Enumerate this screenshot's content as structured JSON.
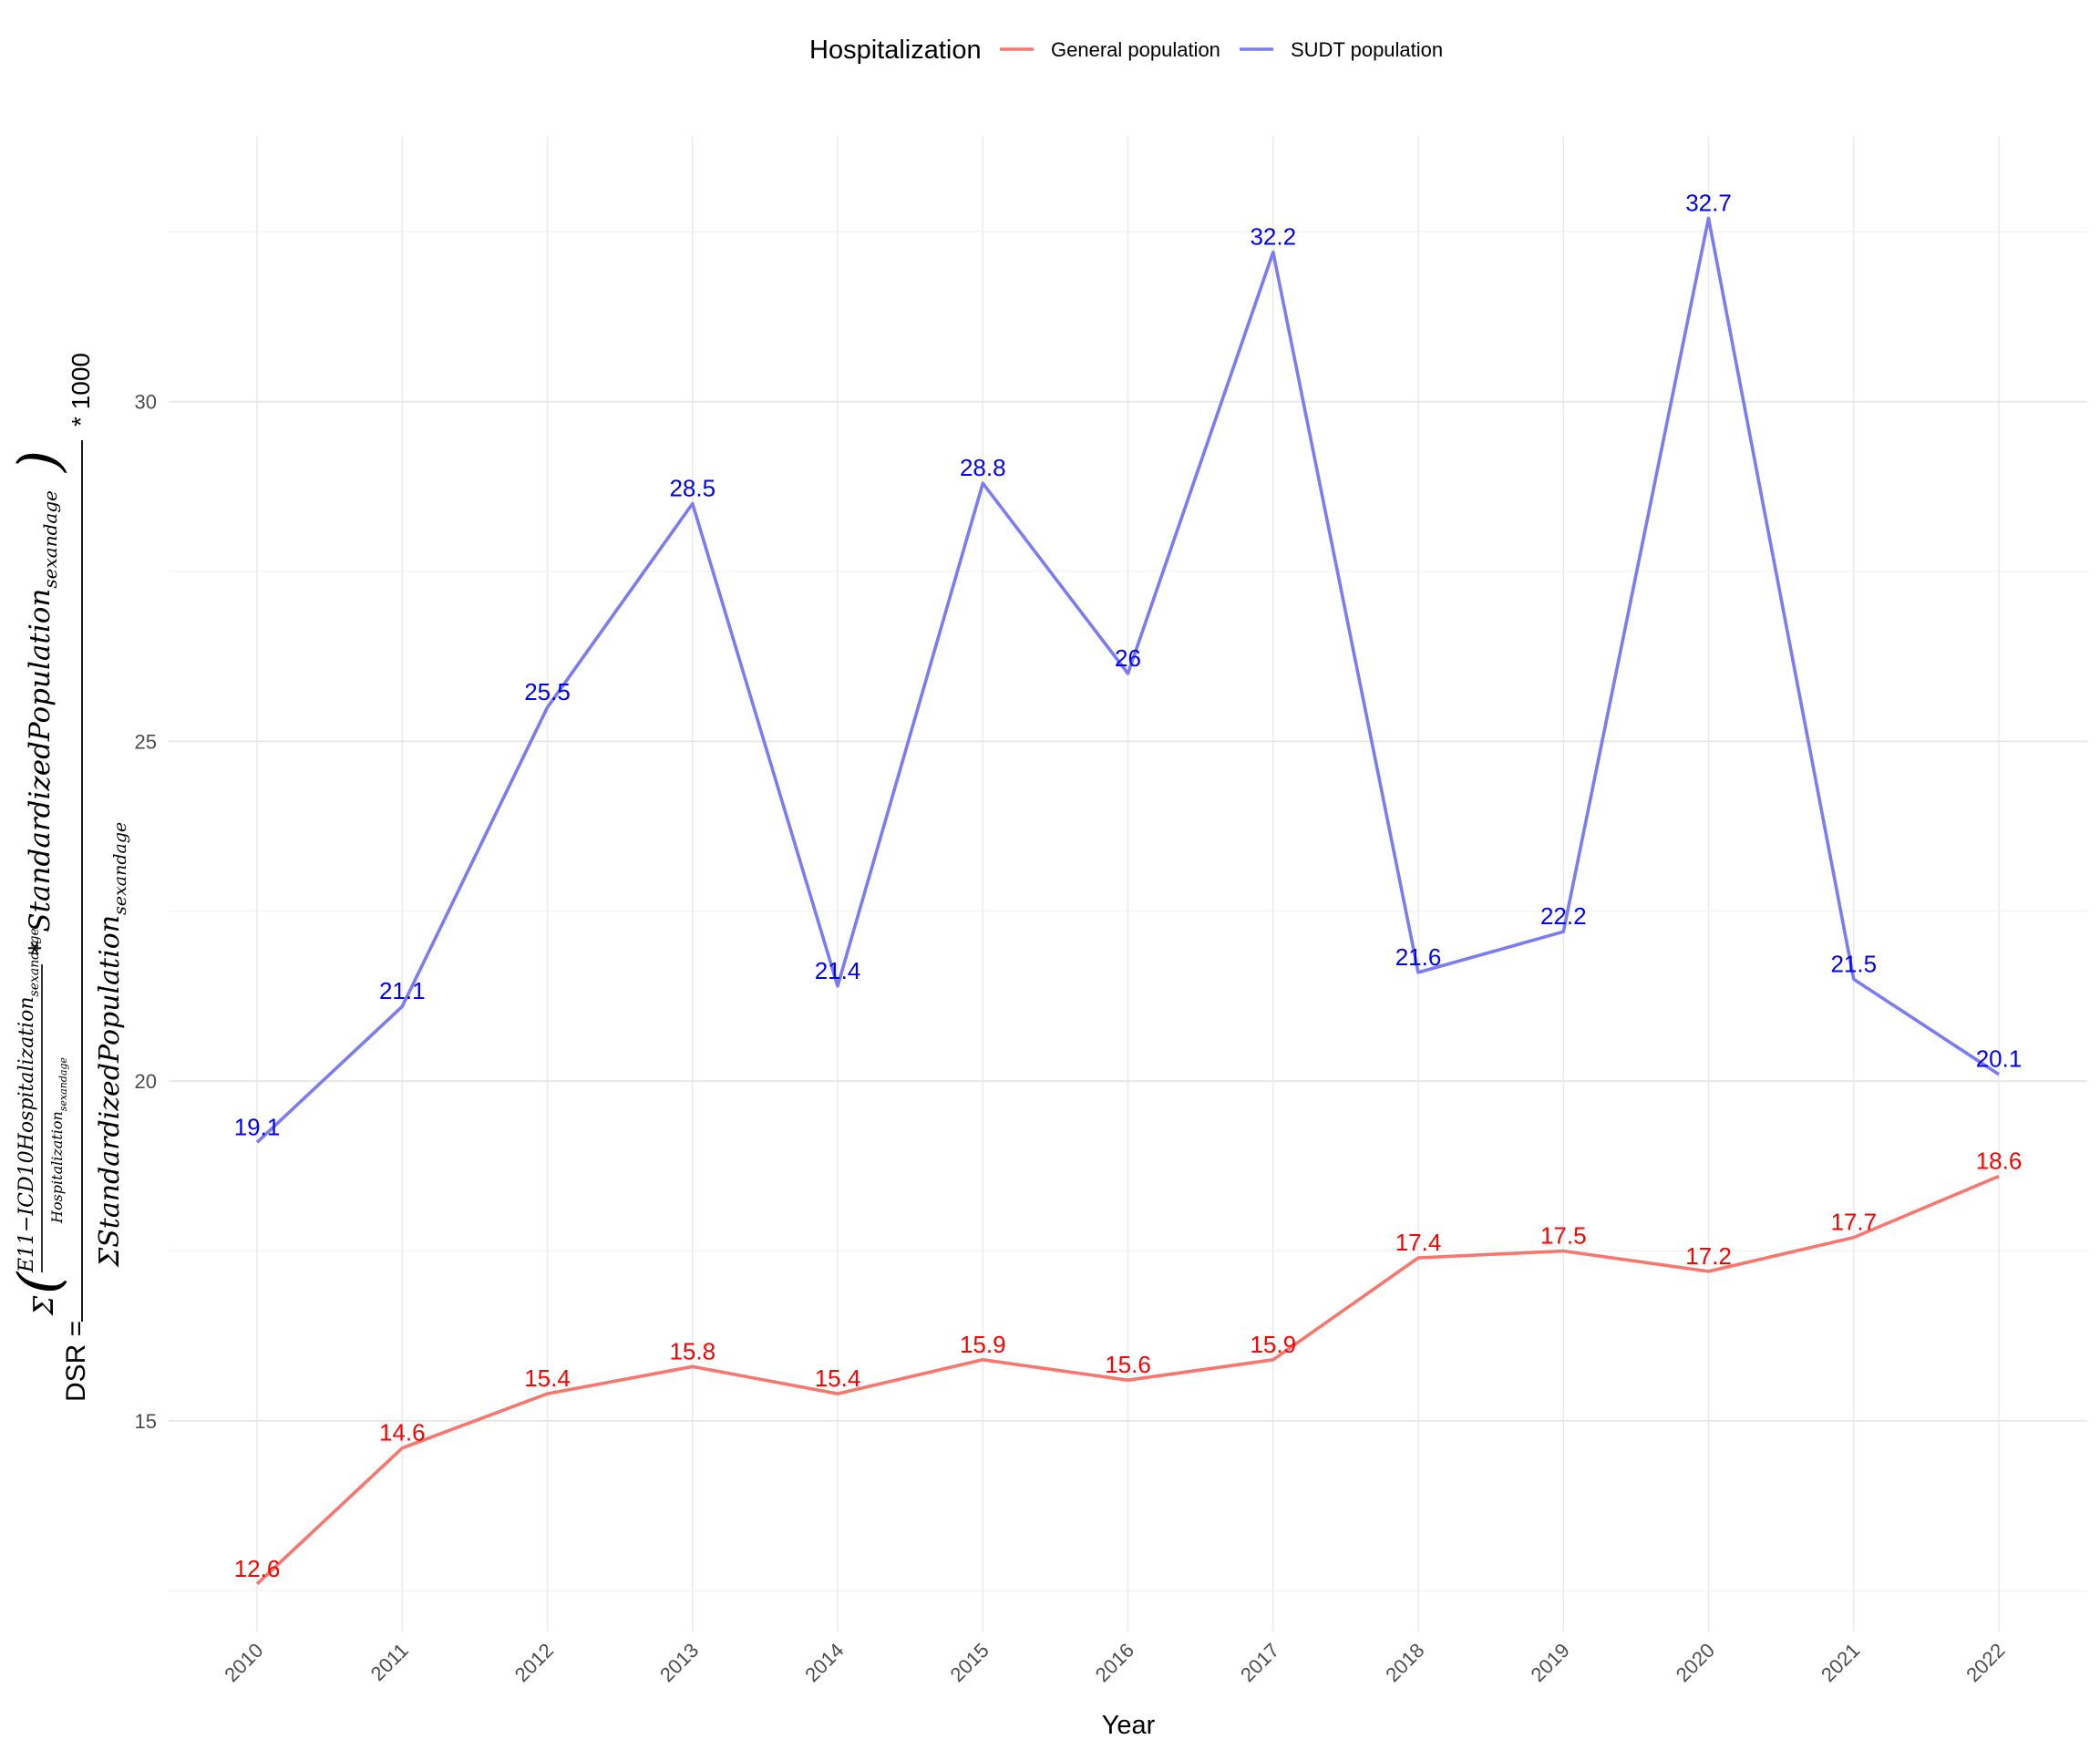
{
  "chart_data": {
    "type": "line",
    "xlabel": "Year",
    "ylabel": {
      "prefix": "DSR =",
      "sum_symbol": "Σ",
      "inner_numerator": "E11−ICD10Hospitalization",
      "inner_numerator_sub": "sexandage",
      "inner_denominator": "Hospitalization",
      "inner_denominator_sub": "sexandage",
      "times_term": "* StandardizedPopulation",
      "times_term_sub": "sexandage",
      "denominator": "ΣStandardizedPopulation",
      "denominator_sub": "sexandage",
      "multiplier": "* 1000"
    },
    "legend": {
      "title": "Hospitalization",
      "placement": "top"
    },
    "x": [
      "2010",
      "2011",
      "2012",
      "2013",
      "2014",
      "2015",
      "2016",
      "2017",
      "2018",
      "2019",
      "2020",
      "2021",
      "2022"
    ],
    "y_ticks": [
      "15",
      "20",
      "25",
      "30"
    ],
    "ylim": [
      11.9,
      33.9
    ],
    "grid": true,
    "series": [
      {
        "name": "General population",
        "color": "#F8766D",
        "label_color": "#FF0000",
        "values": [
          12.6,
          14.6,
          15.4,
          15.8,
          15.4,
          15.9,
          15.6,
          15.9,
          17.4,
          17.5,
          17.2,
          17.7,
          18.6
        ],
        "labels": [
          "12.6",
          "14.6",
          "15.4",
          "15.8",
          "15.4",
          "15.9",
          "15.6",
          "15.9",
          "17.4",
          "17.5",
          "17.2",
          "17.7",
          "18.6"
        ]
      },
      {
        "name": "SUDT population",
        "color": "#7B7BF2",
        "label_color": "#0000FF",
        "values": [
          19.1,
          21.1,
          25.5,
          28.5,
          21.4,
          28.8,
          26.0,
          32.2,
          21.6,
          22.2,
          32.7,
          21.5,
          20.1
        ],
        "labels": [
          "19.1",
          "21.1",
          "25.5",
          "28.5",
          "21.4",
          "28.8",
          "26",
          "32.2",
          "21.6",
          "22.2",
          "32.7",
          "21.5",
          "20.1"
        ]
      }
    ]
  }
}
